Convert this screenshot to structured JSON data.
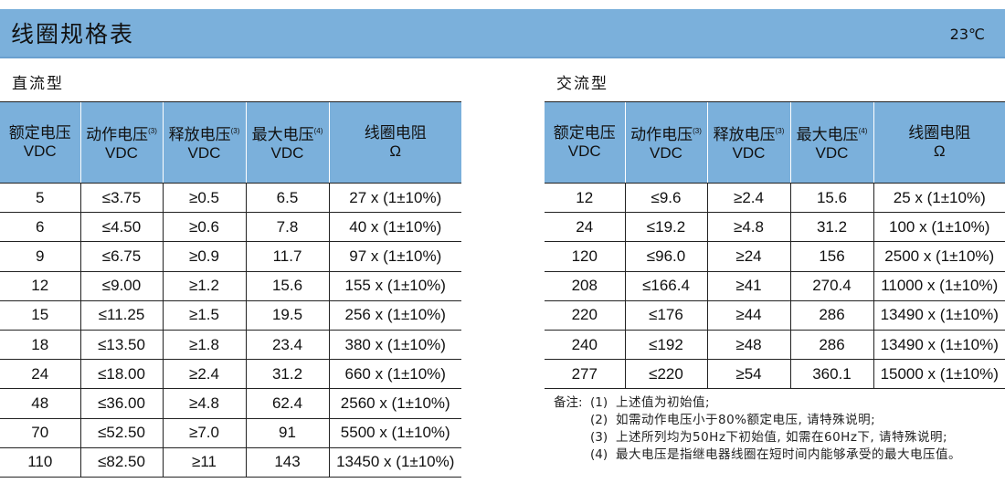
{
  "header": {
    "title": "线圈规格表",
    "temperature": "23℃"
  },
  "dc": {
    "title": "直流型",
    "headers": [
      {
        "line1": "额定电压",
        "line2": "VDC",
        "sup": ""
      },
      {
        "line1": "动作电压",
        "line2": "VDC",
        "sup": "(3)"
      },
      {
        "line1": "释放电压",
        "line2": "VDC",
        "sup": "(3)"
      },
      {
        "line1": "最大电压",
        "line2": "VDC",
        "sup": "(4)"
      },
      {
        "line1": "线圈电阻",
        "line2": "Ω",
        "sup": ""
      }
    ],
    "rows": [
      [
        "5",
        "≤3.75",
        "≥0.5",
        "6.5",
        "27 x (1±10%)"
      ],
      [
        "6",
        "≤4.50",
        "≥0.6",
        "7.8",
        "40 x (1±10%)"
      ],
      [
        "9",
        "≤6.75",
        "≥0.9",
        "11.7",
        "97 x (1±10%)"
      ],
      [
        "12",
        "≤9.00",
        "≥1.2",
        "15.6",
        "155 x (1±10%)"
      ],
      [
        "15",
        "≤11.25",
        "≥1.5",
        "19.5",
        "256 x (1±10%)"
      ],
      [
        "18",
        "≤13.50",
        "≥1.8",
        "23.4",
        "380 x (1±10%)"
      ],
      [
        "24",
        "≤18.00",
        "≥2.4",
        "31.2",
        "660 x (1±10%)"
      ],
      [
        "48",
        "≤36.00",
        "≥4.8",
        "62.4",
        "2560 x (1±10%)"
      ],
      [
        "70",
        "≤52.50",
        "≥7.0",
        "91",
        "5500 x (1±10%)"
      ],
      [
        "110",
        "≤82.50",
        "≥11",
        "143",
        "13450 x (1±10%)"
      ]
    ]
  },
  "ac": {
    "title": "交流型",
    "headers": [
      {
        "line1": "额定电压",
        "line2": "VDC",
        "sup": ""
      },
      {
        "line1": "动作电压",
        "line2": "VDC",
        "sup": "(3)"
      },
      {
        "line1": "释放电压",
        "line2": "VDC",
        "sup": "(3)"
      },
      {
        "line1": "最大电压",
        "line2": "VDC",
        "sup": "(4)"
      },
      {
        "line1": "线圈电阻",
        "line2": "Ω",
        "sup": ""
      }
    ],
    "rows": [
      [
        "12",
        "≤9.6",
        "≥2.4",
        "15.6",
        "25 x (1±10%)"
      ],
      [
        "24",
        "≤19.2",
        "≥4.8",
        "31.2",
        "100 x (1±10%)"
      ],
      [
        "120",
        "≤96.0",
        "≥24",
        "156",
        "2500 x (1±10%)"
      ],
      [
        "208",
        "≤166.4",
        "≥41",
        "270.4",
        "11000 x (1±10%)"
      ],
      [
        "220",
        "≤176",
        "≥44",
        "286",
        "13490 x (1±10%)"
      ],
      [
        "240",
        "≤192",
        "≥48",
        "286",
        "13490 x (1±10%)"
      ],
      [
        "277",
        "≤220",
        "≥54",
        "360.1",
        "15000 x (1±10%)"
      ]
    ]
  },
  "notes": {
    "label": "备注:",
    "items": [
      {
        "num": "(1)",
        "text": "上述值为初始值;"
      },
      {
        "num": "(2)",
        "text": "如需动作电压小于80%额定电压, 请特殊说明;"
      },
      {
        "num": "(3)",
        "text": "上述所列均为50Hz下初始值, 如需在60Hz下, 请特殊说明;"
      },
      {
        "num": "(4)",
        "text": "最大电压是指继电器线圈在短时间内能够承受的最大电压值。"
      }
    ]
  }
}
